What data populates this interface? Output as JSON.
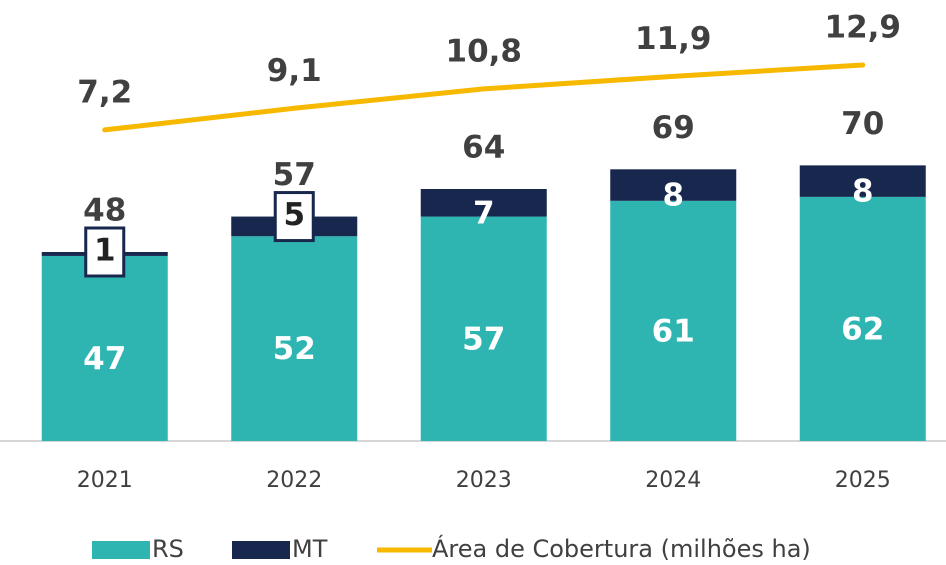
{
  "chart_data": {
    "type": "bar",
    "categories": [
      "2021",
      "2022",
      "2023",
      "2024",
      "2025"
    ],
    "series": [
      {
        "name": "RS",
        "color": "#2eb5b1",
        "values": [
          47,
          52,
          57,
          61,
          62
        ]
      },
      {
        "name": "MT",
        "color": "#18274d",
        "values": [
          1,
          5,
          7,
          8,
          8
        ]
      },
      {
        "name": "Área de Cobertura (milhões ha)",
        "color": "#f7b900",
        "type": "line",
        "axis": "y2",
        "values": [
          7.2,
          9.1,
          10.8,
          11.9,
          12.9
        ],
        "value_labels": [
          "7,2",
          "9,1",
          "10,8",
          "11,9",
          "12,9"
        ]
      }
    ],
    "totals": [
      48,
      57,
      64,
      69,
      70
    ],
    "stacked": true,
    "ylim": [
      0,
      112
    ],
    "y2lim": [
      -20.1,
      18.6
    ],
    "legend": "bottom"
  }
}
